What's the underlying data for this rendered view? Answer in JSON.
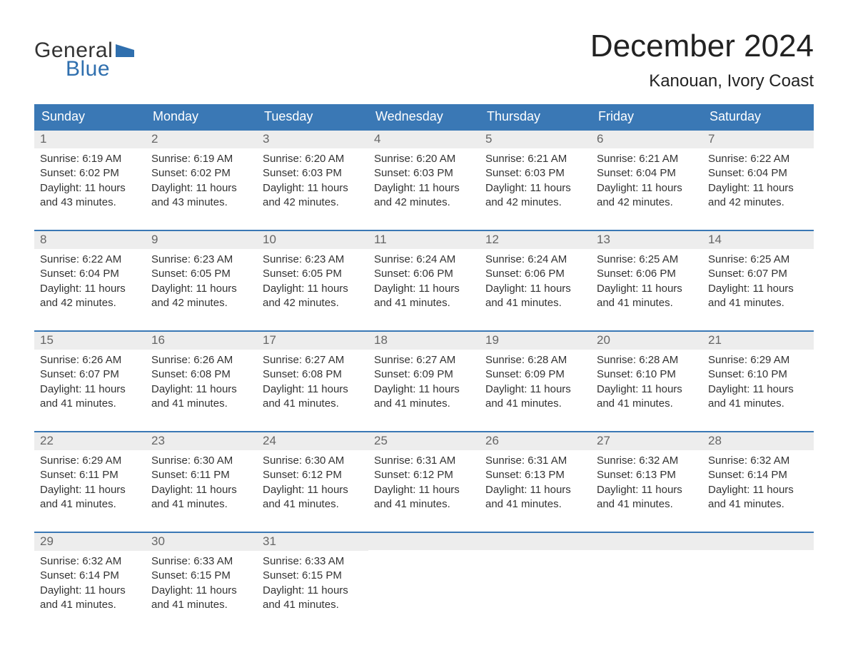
{
  "logo": {
    "text1": "General",
    "text2": "Blue",
    "icon_color": "#2f6fae",
    "text1_color": "#333333",
    "text2_color": "#2f6fae"
  },
  "title": "December 2024",
  "location": "Kanouan, Ivory Coast",
  "colors": {
    "header_bg": "#3a78b5",
    "header_text": "#ffffff",
    "daynum_bg": "#ededed",
    "daynum_text": "#666666",
    "row_border": "#3a78b5",
    "body_text": "#333333",
    "background": "#ffffff"
  },
  "fonts": {
    "title_pt": 44,
    "location_pt": 24,
    "weekday_pt": 18,
    "daynum_pt": 17,
    "body_pt": 15
  },
  "weekdays": [
    "Sunday",
    "Monday",
    "Tuesday",
    "Wednesday",
    "Thursday",
    "Friday",
    "Saturday"
  ],
  "weeks": [
    [
      {
        "num": "1",
        "sunrise": "Sunrise: 6:19 AM",
        "sunset": "Sunset: 6:02 PM",
        "daylight": "Daylight: 11 hours and 43 minutes."
      },
      {
        "num": "2",
        "sunrise": "Sunrise: 6:19 AM",
        "sunset": "Sunset: 6:02 PM",
        "daylight": "Daylight: 11 hours and 43 minutes."
      },
      {
        "num": "3",
        "sunrise": "Sunrise: 6:20 AM",
        "sunset": "Sunset: 6:03 PM",
        "daylight": "Daylight: 11 hours and 42 minutes."
      },
      {
        "num": "4",
        "sunrise": "Sunrise: 6:20 AM",
        "sunset": "Sunset: 6:03 PM",
        "daylight": "Daylight: 11 hours and 42 minutes."
      },
      {
        "num": "5",
        "sunrise": "Sunrise: 6:21 AM",
        "sunset": "Sunset: 6:03 PM",
        "daylight": "Daylight: 11 hours and 42 minutes."
      },
      {
        "num": "6",
        "sunrise": "Sunrise: 6:21 AM",
        "sunset": "Sunset: 6:04 PM",
        "daylight": "Daylight: 11 hours and 42 minutes."
      },
      {
        "num": "7",
        "sunrise": "Sunrise: 6:22 AM",
        "sunset": "Sunset: 6:04 PM",
        "daylight": "Daylight: 11 hours and 42 minutes."
      }
    ],
    [
      {
        "num": "8",
        "sunrise": "Sunrise: 6:22 AM",
        "sunset": "Sunset: 6:04 PM",
        "daylight": "Daylight: 11 hours and 42 minutes."
      },
      {
        "num": "9",
        "sunrise": "Sunrise: 6:23 AM",
        "sunset": "Sunset: 6:05 PM",
        "daylight": "Daylight: 11 hours and 42 minutes."
      },
      {
        "num": "10",
        "sunrise": "Sunrise: 6:23 AM",
        "sunset": "Sunset: 6:05 PM",
        "daylight": "Daylight: 11 hours and 42 minutes."
      },
      {
        "num": "11",
        "sunrise": "Sunrise: 6:24 AM",
        "sunset": "Sunset: 6:06 PM",
        "daylight": "Daylight: 11 hours and 41 minutes."
      },
      {
        "num": "12",
        "sunrise": "Sunrise: 6:24 AM",
        "sunset": "Sunset: 6:06 PM",
        "daylight": "Daylight: 11 hours and 41 minutes."
      },
      {
        "num": "13",
        "sunrise": "Sunrise: 6:25 AM",
        "sunset": "Sunset: 6:06 PM",
        "daylight": "Daylight: 11 hours and 41 minutes."
      },
      {
        "num": "14",
        "sunrise": "Sunrise: 6:25 AM",
        "sunset": "Sunset: 6:07 PM",
        "daylight": "Daylight: 11 hours and 41 minutes."
      }
    ],
    [
      {
        "num": "15",
        "sunrise": "Sunrise: 6:26 AM",
        "sunset": "Sunset: 6:07 PM",
        "daylight": "Daylight: 11 hours and 41 minutes."
      },
      {
        "num": "16",
        "sunrise": "Sunrise: 6:26 AM",
        "sunset": "Sunset: 6:08 PM",
        "daylight": "Daylight: 11 hours and 41 minutes."
      },
      {
        "num": "17",
        "sunrise": "Sunrise: 6:27 AM",
        "sunset": "Sunset: 6:08 PM",
        "daylight": "Daylight: 11 hours and 41 minutes."
      },
      {
        "num": "18",
        "sunrise": "Sunrise: 6:27 AM",
        "sunset": "Sunset: 6:09 PM",
        "daylight": "Daylight: 11 hours and 41 minutes."
      },
      {
        "num": "19",
        "sunrise": "Sunrise: 6:28 AM",
        "sunset": "Sunset: 6:09 PM",
        "daylight": "Daylight: 11 hours and 41 minutes."
      },
      {
        "num": "20",
        "sunrise": "Sunrise: 6:28 AM",
        "sunset": "Sunset: 6:10 PM",
        "daylight": "Daylight: 11 hours and 41 minutes."
      },
      {
        "num": "21",
        "sunrise": "Sunrise: 6:29 AM",
        "sunset": "Sunset: 6:10 PM",
        "daylight": "Daylight: 11 hours and 41 minutes."
      }
    ],
    [
      {
        "num": "22",
        "sunrise": "Sunrise: 6:29 AM",
        "sunset": "Sunset: 6:11 PM",
        "daylight": "Daylight: 11 hours and 41 minutes."
      },
      {
        "num": "23",
        "sunrise": "Sunrise: 6:30 AM",
        "sunset": "Sunset: 6:11 PM",
        "daylight": "Daylight: 11 hours and 41 minutes."
      },
      {
        "num": "24",
        "sunrise": "Sunrise: 6:30 AM",
        "sunset": "Sunset: 6:12 PM",
        "daylight": "Daylight: 11 hours and 41 minutes."
      },
      {
        "num": "25",
        "sunrise": "Sunrise: 6:31 AM",
        "sunset": "Sunset: 6:12 PM",
        "daylight": "Daylight: 11 hours and 41 minutes."
      },
      {
        "num": "26",
        "sunrise": "Sunrise: 6:31 AM",
        "sunset": "Sunset: 6:13 PM",
        "daylight": "Daylight: 11 hours and 41 minutes."
      },
      {
        "num": "27",
        "sunrise": "Sunrise: 6:32 AM",
        "sunset": "Sunset: 6:13 PM",
        "daylight": "Daylight: 11 hours and 41 minutes."
      },
      {
        "num": "28",
        "sunrise": "Sunrise: 6:32 AM",
        "sunset": "Sunset: 6:14 PM",
        "daylight": "Daylight: 11 hours and 41 minutes."
      }
    ],
    [
      {
        "num": "29",
        "sunrise": "Sunrise: 6:32 AM",
        "sunset": "Sunset: 6:14 PM",
        "daylight": "Daylight: 11 hours and 41 minutes."
      },
      {
        "num": "30",
        "sunrise": "Sunrise: 6:33 AM",
        "sunset": "Sunset: 6:15 PM",
        "daylight": "Daylight: 11 hours and 41 minutes."
      },
      {
        "num": "31",
        "sunrise": "Sunrise: 6:33 AM",
        "sunset": "Sunset: 6:15 PM",
        "daylight": "Daylight: 11 hours and 41 minutes."
      },
      null,
      null,
      null,
      null
    ]
  ]
}
